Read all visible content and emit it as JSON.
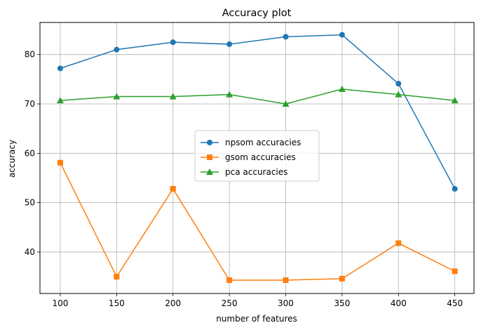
{
  "chart_data": {
    "type": "line",
    "title": "Accuracy plot",
    "xlabel": "number of features",
    "ylabel": "accuracy",
    "x": [
      100,
      150,
      200,
      250,
      300,
      350,
      400,
      450
    ],
    "xticks": [
      100,
      150,
      200,
      250,
      300,
      350,
      400,
      450
    ],
    "yticks": [
      40,
      50,
      60,
      70,
      80
    ],
    "xlim": [
      82,
      467
    ],
    "ylim": [
      31.6,
      86.5
    ],
    "grid": true,
    "legend_position": "center",
    "series": [
      {
        "name": "npsom accuracies",
        "color": "#1f77b4",
        "marker": "circle",
        "values": [
          77.2,
          81.0,
          82.5,
          82.1,
          83.6,
          84.0,
          74.1,
          52.8
        ]
      },
      {
        "name": "gsom accuracies",
        "color": "#ff7f0e",
        "marker": "square",
        "values": [
          58.1,
          35.0,
          52.8,
          34.3,
          34.3,
          34.6,
          41.8,
          36.1
        ]
      },
      {
        "name": "pca accuracies",
        "color": "#2ca02c",
        "marker": "triangle",
        "values": [
          70.7,
          71.5,
          71.5,
          71.9,
          70.0,
          73.0,
          71.9,
          70.7
        ]
      }
    ]
  }
}
